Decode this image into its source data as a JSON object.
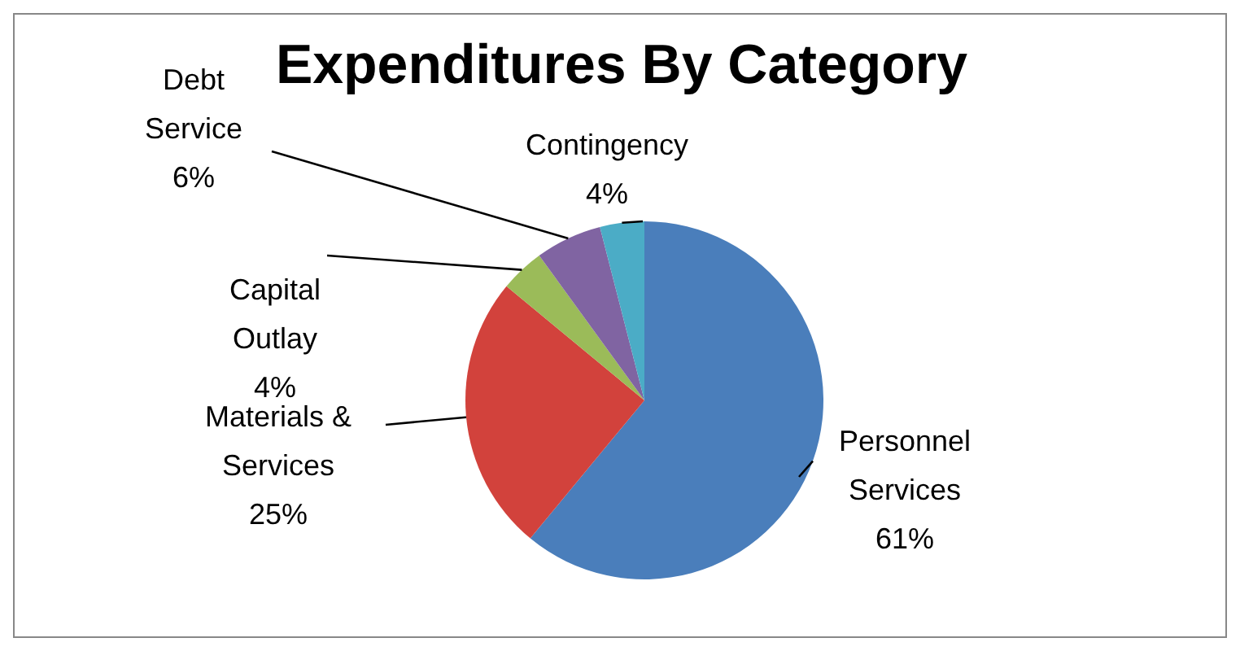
{
  "chart_data": {
    "type": "pie",
    "title": "Expenditures By Category",
    "categories": [
      "Personnel Services",
      "Materials & Services",
      "Capital Outlay",
      "Debt Service",
      "Contingency"
    ],
    "values": [
      61,
      25,
      4,
      6,
      4
    ],
    "value_labels": [
      "61%",
      "25%",
      "4%",
      "6%",
      "4%"
    ],
    "colors": [
      "#4a7ebb",
      "#d2423c",
      "#9bbb59",
      "#8064a2",
      "#4bacc6"
    ],
    "legend": false
  }
}
